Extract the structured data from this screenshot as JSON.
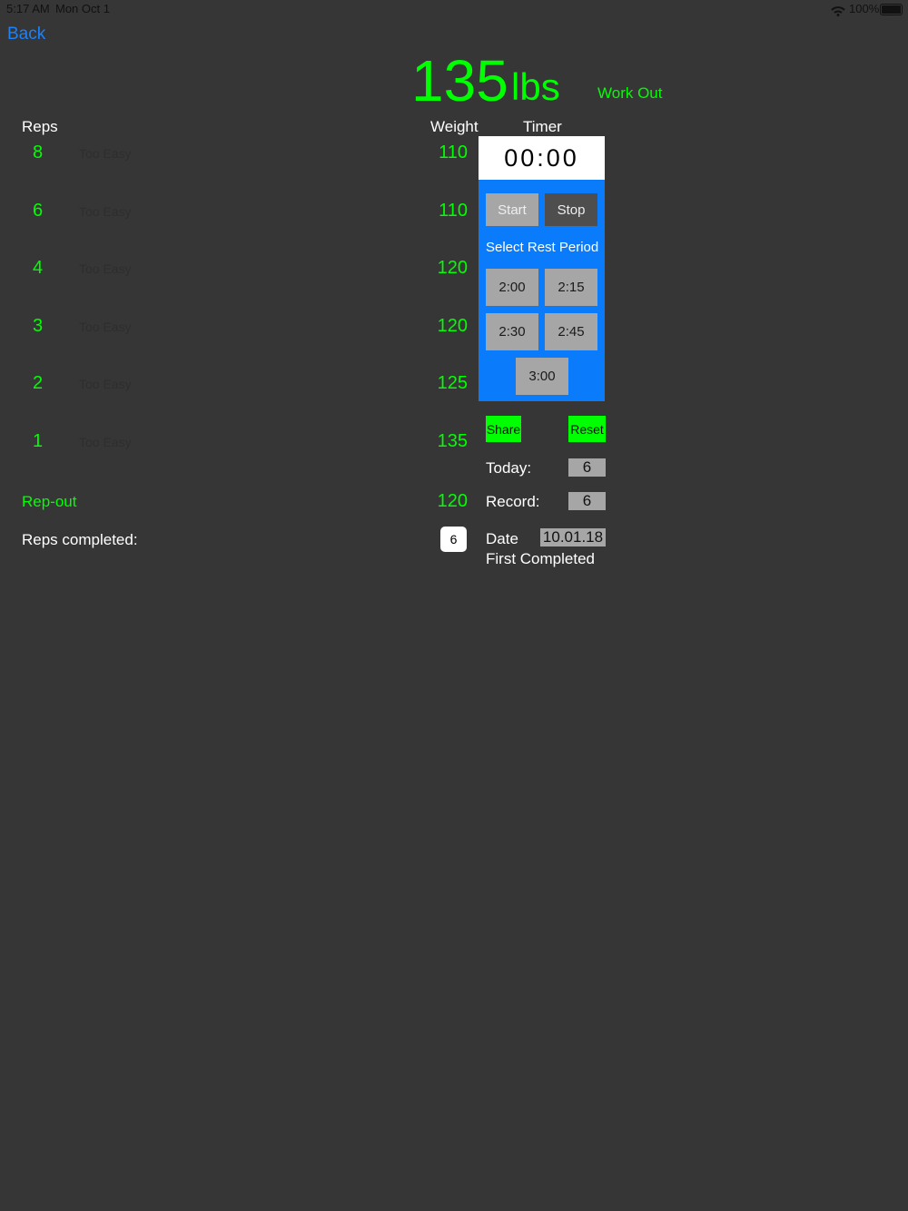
{
  "status": {
    "time": "5:17 AM",
    "date": "Mon Oct 1",
    "battery": "100%"
  },
  "nav": {
    "back": "Back"
  },
  "header": {
    "weight": "135",
    "unit": "lbs",
    "workout": "Work Out"
  },
  "columns": {
    "reps": "Reps",
    "weight": "Weight",
    "timer": "Timer"
  },
  "rows": [
    {
      "reps": "8",
      "label": "Too Easy",
      "weight": "110"
    },
    {
      "reps": "6",
      "label": "Too Easy",
      "weight": "110"
    },
    {
      "reps": "4",
      "label": "Too Easy",
      "weight": "120"
    },
    {
      "reps": "3",
      "label": "Too Easy",
      "weight": "120"
    },
    {
      "reps": "2",
      "label": "Too Easy",
      "weight": "125"
    },
    {
      "reps": "1",
      "label": "Too Easy",
      "weight": "135"
    }
  ],
  "repout": {
    "label": "Rep-out",
    "weight": "120"
  },
  "completed": {
    "label": "Reps completed:",
    "value": "6"
  },
  "timer": {
    "display": "00:00",
    "start": "Start",
    "stop": "Stop",
    "rest_title": "Select Rest Period",
    "options": [
      "2:00",
      "2:15",
      "2:30",
      "2:45",
      "3:00"
    ]
  },
  "actions": {
    "share": "Share",
    "reset": "Reset"
  },
  "stats": {
    "today_label": "Today:",
    "today": "6",
    "record_label": "Record:",
    "record": "6",
    "date_label": "Date",
    "date": "10.01.18",
    "first": "First Completed"
  }
}
